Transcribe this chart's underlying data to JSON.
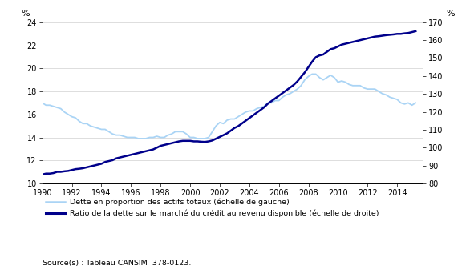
{
  "ylabel_left": "%",
  "ylabel_right": "%",
  "source": "Source(s) : Tableau CANSIM  378-0123.",
  "legend": [
    "Dette en proportion des actifs totaux (échelle de gauche)",
    "Ratio de la dette sur le marché du crédit au revenu disponible (échelle de droite)"
  ],
  "line1_color": "#aad4f5",
  "line2_color": "#00008B",
  "xlim": [
    1990,
    2015.75
  ],
  "ylim_left": [
    10,
    24
  ],
  "ylim_right": [
    80,
    170
  ],
  "yticks_left": [
    10,
    12,
    14,
    16,
    18,
    20,
    22,
    24
  ],
  "yticks_right": [
    80,
    90,
    100,
    110,
    120,
    130,
    140,
    150,
    160,
    170
  ],
  "xticks": [
    1990,
    1992,
    1994,
    1996,
    1998,
    2000,
    2002,
    2004,
    2006,
    2008,
    2010,
    2012,
    2014
  ],
  "line1_x": [
    1990.0,
    1990.25,
    1990.5,
    1990.75,
    1991.0,
    1991.25,
    1991.5,
    1991.75,
    1992.0,
    1992.25,
    1992.5,
    1992.75,
    1993.0,
    1993.25,
    1993.5,
    1993.75,
    1994.0,
    1994.25,
    1994.5,
    1994.75,
    1995.0,
    1995.25,
    1995.5,
    1995.75,
    1996.0,
    1996.25,
    1996.5,
    1996.75,
    1997.0,
    1997.25,
    1997.5,
    1997.75,
    1998.0,
    1998.25,
    1998.5,
    1998.75,
    1999.0,
    1999.25,
    1999.5,
    1999.75,
    2000.0,
    2000.25,
    2000.5,
    2000.75,
    2001.0,
    2001.25,
    2001.5,
    2001.75,
    2002.0,
    2002.25,
    2002.5,
    2002.75,
    2003.0,
    2003.25,
    2003.5,
    2003.75,
    2004.0,
    2004.25,
    2004.5,
    2004.75,
    2005.0,
    2005.25,
    2005.5,
    2005.75,
    2006.0,
    2006.25,
    2006.5,
    2006.75,
    2007.0,
    2007.25,
    2007.5,
    2007.75,
    2008.0,
    2008.25,
    2008.5,
    2008.75,
    2009.0,
    2009.25,
    2009.5,
    2009.75,
    2010.0,
    2010.25,
    2010.5,
    2010.75,
    2011.0,
    2011.25,
    2011.5,
    2011.75,
    2012.0,
    2012.25,
    2012.5,
    2012.75,
    2013.0,
    2013.25,
    2013.5,
    2013.75,
    2014.0,
    2014.25,
    2014.5,
    2014.75,
    2015.0,
    2015.25
  ],
  "line1_y": [
    17.0,
    16.8,
    16.8,
    16.7,
    16.6,
    16.5,
    16.2,
    16.0,
    15.8,
    15.7,
    15.4,
    15.2,
    15.2,
    15.0,
    14.9,
    14.8,
    14.7,
    14.7,
    14.5,
    14.3,
    14.2,
    14.2,
    14.1,
    14.0,
    14.0,
    14.0,
    13.9,
    13.9,
    13.9,
    14.0,
    14.0,
    14.1,
    14.0,
    14.0,
    14.2,
    14.3,
    14.5,
    14.5,
    14.5,
    14.3,
    14.0,
    14.0,
    13.9,
    13.9,
    13.9,
    14.0,
    14.5,
    15.0,
    15.3,
    15.2,
    15.5,
    15.6,
    15.6,
    15.8,
    16.0,
    16.2,
    16.3,
    16.3,
    16.5,
    16.6,
    16.7,
    17.0,
    17.0,
    17.2,
    17.2,
    17.5,
    17.7,
    17.8,
    18.0,
    18.2,
    18.5,
    19.0,
    19.3,
    19.5,
    19.5,
    19.2,
    19.0,
    19.2,
    19.4,
    19.2,
    18.8,
    18.9,
    18.8,
    18.6,
    18.5,
    18.5,
    18.5,
    18.3,
    18.2,
    18.2,
    18.2,
    18.0,
    17.8,
    17.7,
    17.5,
    17.4,
    17.3,
    17.0,
    16.9,
    17.0,
    16.8,
    17.0
  ],
  "line2_x": [
    1990.0,
    1990.25,
    1990.5,
    1990.75,
    1991.0,
    1991.25,
    1991.5,
    1991.75,
    1992.0,
    1992.25,
    1992.5,
    1992.75,
    1993.0,
    1993.25,
    1993.5,
    1993.75,
    1994.0,
    1994.25,
    1994.5,
    1994.75,
    1995.0,
    1995.25,
    1995.5,
    1995.75,
    1996.0,
    1996.25,
    1996.5,
    1996.75,
    1997.0,
    1997.25,
    1997.5,
    1997.75,
    1998.0,
    1998.25,
    1998.5,
    1998.75,
    1999.0,
    1999.25,
    1999.5,
    1999.75,
    2000.0,
    2000.25,
    2000.5,
    2000.75,
    2001.0,
    2001.25,
    2001.5,
    2001.75,
    2002.0,
    2002.25,
    2002.5,
    2002.75,
    2003.0,
    2003.25,
    2003.5,
    2003.75,
    2004.0,
    2004.25,
    2004.5,
    2004.75,
    2005.0,
    2005.25,
    2005.5,
    2005.75,
    2006.0,
    2006.25,
    2006.5,
    2006.75,
    2007.0,
    2007.25,
    2007.5,
    2007.75,
    2008.0,
    2008.25,
    2008.5,
    2008.75,
    2009.0,
    2009.25,
    2009.5,
    2009.75,
    2010.0,
    2010.25,
    2010.5,
    2010.75,
    2011.0,
    2011.25,
    2011.5,
    2011.75,
    2012.0,
    2012.25,
    2012.5,
    2012.75,
    2013.0,
    2013.25,
    2013.5,
    2013.75,
    2014.0,
    2014.25,
    2014.5,
    2014.75,
    2015.0,
    2015.25
  ],
  "line2_y": [
    85.0,
    85.5,
    85.5,
    85.8,
    86.5,
    86.5,
    86.8,
    87.0,
    87.5,
    88.0,
    88.2,
    88.5,
    89.0,
    89.5,
    90.0,
    90.5,
    91.0,
    92.0,
    92.5,
    93.0,
    94.0,
    94.5,
    95.0,
    95.5,
    96.0,
    96.5,
    97.0,
    97.5,
    98.0,
    98.5,
    99.0,
    100.0,
    101.0,
    101.5,
    102.0,
    102.5,
    103.0,
    103.5,
    103.8,
    103.8,
    103.8,
    103.5,
    103.5,
    103.3,
    103.2,
    103.5,
    104.0,
    105.0,
    106.0,
    107.0,
    108.0,
    109.5,
    111.0,
    112.0,
    113.5,
    115.0,
    116.5,
    118.0,
    119.5,
    121.0,
    122.5,
    124.5,
    126.0,
    127.5,
    129.0,
    130.5,
    132.0,
    133.5,
    135.0,
    137.0,
    139.5,
    142.0,
    145.0,
    148.0,
    150.5,
    151.5,
    152.0,
    153.5,
    155.0,
    155.5,
    156.5,
    157.5,
    158.0,
    158.5,
    159.0,
    159.5,
    160.0,
    160.5,
    161.0,
    161.5,
    162.0,
    162.2,
    162.5,
    162.8,
    163.0,
    163.2,
    163.5,
    163.5,
    163.8,
    164.0,
    164.5,
    165.0
  ]
}
